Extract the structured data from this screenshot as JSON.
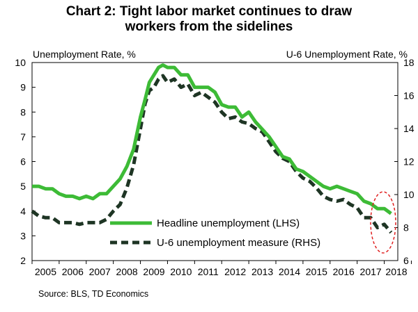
{
  "chart_data": {
    "type": "line",
    "title": [
      "Chart 2: Tight labor market continues to draw",
      "workers from the sidelines"
    ],
    "ylabel_left": "Unemployment Rate, %",
    "ylabel_right": "U-6 Unemployment Rate, %",
    "ylim_left": [
      2,
      10
    ],
    "ylim_right": [
      6,
      18
    ],
    "xlim": [
      2005,
      2018.5
    ],
    "yticks_left": [
      2,
      3,
      4,
      5,
      6,
      7,
      8,
      9,
      10
    ],
    "yticks_right": [
      6,
      8,
      10,
      12,
      14,
      16,
      18
    ],
    "x_tick_labels": [
      "2005",
      "2006",
      "2007",
      "2008",
      "2009",
      "2010",
      "2011",
      "2012",
      "2013",
      "2014",
      "2015",
      "2016",
      "2017",
      "2018"
    ],
    "grid": false,
    "legend_position": "bottom-center",
    "source": "Source: BLS, TD Economics",
    "annotation": "red dashed ellipse highlighting the latest 2018 readings",
    "series": [
      {
        "name": "Headline unemployment (LHS)",
        "axis": "left",
        "color": "#3dbb36",
        "style": "solid",
        "x": [
          2005.0,
          2005.25,
          2005.5,
          2005.75,
          2006.0,
          2006.25,
          2006.5,
          2006.75,
          2007.0,
          2007.25,
          2007.5,
          2007.75,
          2008.0,
          2008.25,
          2008.5,
          2008.75,
          2009.0,
          2009.17,
          2009.33,
          2009.5,
          2009.67,
          2009.83,
          2010.0,
          2010.25,
          2010.5,
          2010.75,
          2011.0,
          2011.25,
          2011.5,
          2011.75,
          2012.0,
          2012.25,
          2012.5,
          2012.75,
          2013.0,
          2013.25,
          2013.5,
          2013.75,
          2014.0,
          2014.25,
          2014.5,
          2014.75,
          2015.0,
          2015.25,
          2015.5,
          2015.75,
          2016.0,
          2016.25,
          2016.5,
          2016.75,
          2017.0,
          2017.25,
          2017.5,
          2017.75,
          2018.0,
          2018.25
        ],
        "values": [
          5.0,
          5.0,
          4.9,
          4.9,
          4.7,
          4.6,
          4.6,
          4.5,
          4.6,
          4.5,
          4.7,
          4.7,
          5.0,
          5.3,
          5.8,
          6.5,
          7.8,
          8.5,
          9.2,
          9.5,
          9.8,
          9.9,
          9.8,
          9.8,
          9.5,
          9.5,
          9.0,
          9.0,
          9.0,
          8.8,
          8.3,
          8.2,
          8.2,
          7.8,
          8.0,
          7.6,
          7.3,
          7.0,
          6.6,
          6.2,
          6.1,
          5.7,
          5.6,
          5.4,
          5.2,
          5.0,
          4.9,
          5.0,
          4.9,
          4.8,
          4.7,
          4.4,
          4.3,
          4.1,
          4.1,
          3.9
        ]
      },
      {
        "name": "U-6 unemployment measure (RHS)",
        "axis": "right",
        "color": "#1e3524",
        "style": "dashed",
        "x": [
          2005.0,
          2005.25,
          2005.5,
          2005.75,
          2006.0,
          2006.25,
          2006.5,
          2006.75,
          2007.0,
          2007.25,
          2007.5,
          2007.75,
          2008.0,
          2008.25,
          2008.5,
          2008.75,
          2009.0,
          2009.17,
          2009.33,
          2009.5,
          2009.67,
          2009.83,
          2010.0,
          2010.25,
          2010.5,
          2010.75,
          2011.0,
          2011.25,
          2011.5,
          2011.75,
          2012.0,
          2012.25,
          2012.5,
          2012.75,
          2013.0,
          2013.25,
          2013.5,
          2013.75,
          2014.0,
          2014.25,
          2014.5,
          2014.75,
          2015.0,
          2015.25,
          2015.5,
          2015.75,
          2016.0,
          2016.25,
          2016.5,
          2016.75,
          2017.0,
          2017.25,
          2017.5,
          2017.75,
          2018.0,
          2018.25
        ],
        "values": [
          9.0,
          8.7,
          8.6,
          8.6,
          8.3,
          8.3,
          8.3,
          8.2,
          8.3,
          8.3,
          8.3,
          8.5,
          9.0,
          9.4,
          10.4,
          11.8,
          14.0,
          15.5,
          16.3,
          16.5,
          17.0,
          17.2,
          16.8,
          17.0,
          16.5,
          16.7,
          16.0,
          16.2,
          15.9,
          15.6,
          15.0,
          14.6,
          14.7,
          14.4,
          14.3,
          14.0,
          13.8,
          13.2,
          12.6,
          12.2,
          12.0,
          11.4,
          11.0,
          10.8,
          10.4,
          9.9,
          9.7,
          9.6,
          9.7,
          9.4,
          9.2,
          8.6,
          8.6,
          8.0,
          8.2,
          7.7
        ]
      }
    ]
  }
}
